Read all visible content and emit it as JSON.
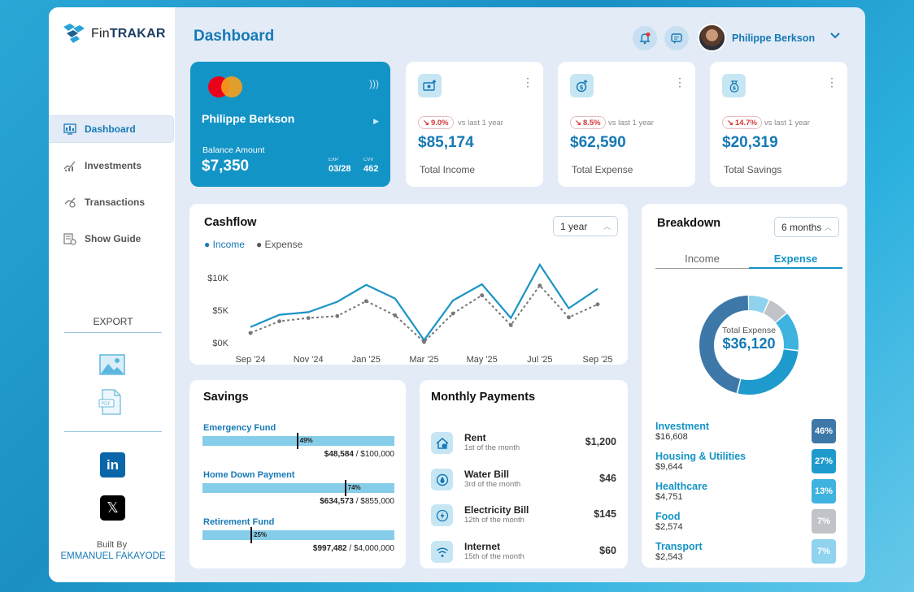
{
  "brand": {
    "name_prefix": "Fin",
    "name_suffix": "TRAKAR"
  },
  "sidebar": {
    "items": [
      {
        "label": "Dashboard",
        "icon": "dashboard-icon",
        "active": true
      },
      {
        "label": "Investments",
        "icon": "investments-icon"
      },
      {
        "label": "Transactions",
        "icon": "transactions-icon"
      },
      {
        "label": "Show Guide",
        "icon": "guide-icon"
      }
    ],
    "export_title": "EXPORT",
    "built_by": "Built By",
    "author": "EMMANUEL FAKAYODE"
  },
  "header": {
    "title": "Dashboard",
    "user_name": "Philippe Berkson"
  },
  "card": {
    "holder": "Philippe Berkson",
    "balance_label": "Balance Amount",
    "balance": "$7,350",
    "exp_label": "EXP",
    "exp": "03/28",
    "cvv_label": "CVV",
    "cvv": "462"
  },
  "kpis": [
    {
      "change": "9.0%",
      "vs": "vs last 1 year",
      "value": "$85,174",
      "label": "Total Income",
      "icon": "income-icon"
    },
    {
      "change": "8.5%",
      "vs": "vs last 1 year",
      "value": "$62,590",
      "label": "Total Expense",
      "icon": "expense-icon"
    },
    {
      "change": "14.7%",
      "vs": "vs last 1 year",
      "value": "$20,319",
      "label": "Total Savings",
      "icon": "savings-icon"
    }
  ],
  "cashflow": {
    "title": "Cashflow",
    "range": "1 year",
    "legend_income": "Income",
    "legend_expense": "Expense"
  },
  "chart_data": {
    "type": "line",
    "title": "Cashflow",
    "x": [
      "Sep '24",
      "Oct '24",
      "Nov '24",
      "Dec '24",
      "Jan '25",
      "Feb '25",
      "Mar '25",
      "Apr '25",
      "May '25",
      "Jun '25",
      "Jul '25",
      "Aug '25",
      "Sep '25"
    ],
    "x_tick_labels": [
      "Sep '24",
      "Nov '24",
      "Jan '25",
      "Mar '25",
      "May '25",
      "Jul '25",
      "Sep '25"
    ],
    "y_tick_labels": [
      "$10K",
      "$5K",
      "$0K"
    ],
    "ylim": [
      0,
      10000
    ],
    "series": [
      {
        "name": "Income",
        "color": "#1a94c4",
        "style": "solid",
        "values": [
          2400,
          4300,
          4700,
          6300,
          8900,
          6800,
          400,
          6500,
          9000,
          3800,
          12000,
          5300,
          8300
        ]
      },
      {
        "name": "Expense",
        "color": "#777777",
        "style": "dotted",
        "values": [
          1500,
          3300,
          3800,
          4100,
          6400,
          4200,
          100,
          4500,
          7300,
          2700,
          8800,
          3900,
          5900
        ]
      }
    ],
    "grid": false,
    "legend": "top-left"
  },
  "breakdown": {
    "title": "Breakdown",
    "range": "6 months",
    "tab_income": "Income",
    "tab_expense": "Expense",
    "center_label": "Total Expense",
    "center_value": "$36,120",
    "items": [
      {
        "name": "Investment",
        "amount": "$16,608",
        "pct": "46%",
        "color": "#3e78a8"
      },
      {
        "name": "Housing & Utilities",
        "amount": "$9,644",
        "pct": "27%",
        "color": "#1e9bcc"
      },
      {
        "name": "Healthcare",
        "amount": "$4,751",
        "pct": "13%",
        "color": "#3eb3e0"
      },
      {
        "name": "Food",
        "amount": "$2,574",
        "pct": "7%",
        "color": "#c0c4c8"
      },
      {
        "name": "Transport",
        "amount": "$2,543",
        "pct": "7%",
        "color": "#8fd3ee"
      }
    ]
  },
  "savings": {
    "title": "Savings",
    "items": [
      {
        "name": "Emergency Fund",
        "pct": "49%",
        "fraction": 0.49,
        "current": "$48,584",
        "target": " / $100,000"
      },
      {
        "name": "Home Down Payment",
        "pct": "74%",
        "fraction": 0.74,
        "current": "$634,573",
        "target": " / $855,000"
      },
      {
        "name": "Retirement Fund",
        "pct": "25%",
        "fraction": 0.25,
        "current": "$997,482",
        "target": " / $4,000,000"
      }
    ]
  },
  "payments": {
    "title": "Monthly Payments",
    "items": [
      {
        "name": "Rent",
        "due": "1st of the month",
        "amount": "$1,200",
        "icon": "house-icon"
      },
      {
        "name": "Water Bill",
        "due": "3rd of the month",
        "amount": "$46",
        "icon": "water-drop-icon"
      },
      {
        "name": "Electricity Bill",
        "due": "12th of the month",
        "amount": "$145",
        "icon": "electricity-icon"
      },
      {
        "name": "Internet",
        "due": "15th of the month",
        "amount": "$60",
        "icon": "wifi-icon"
      }
    ]
  }
}
